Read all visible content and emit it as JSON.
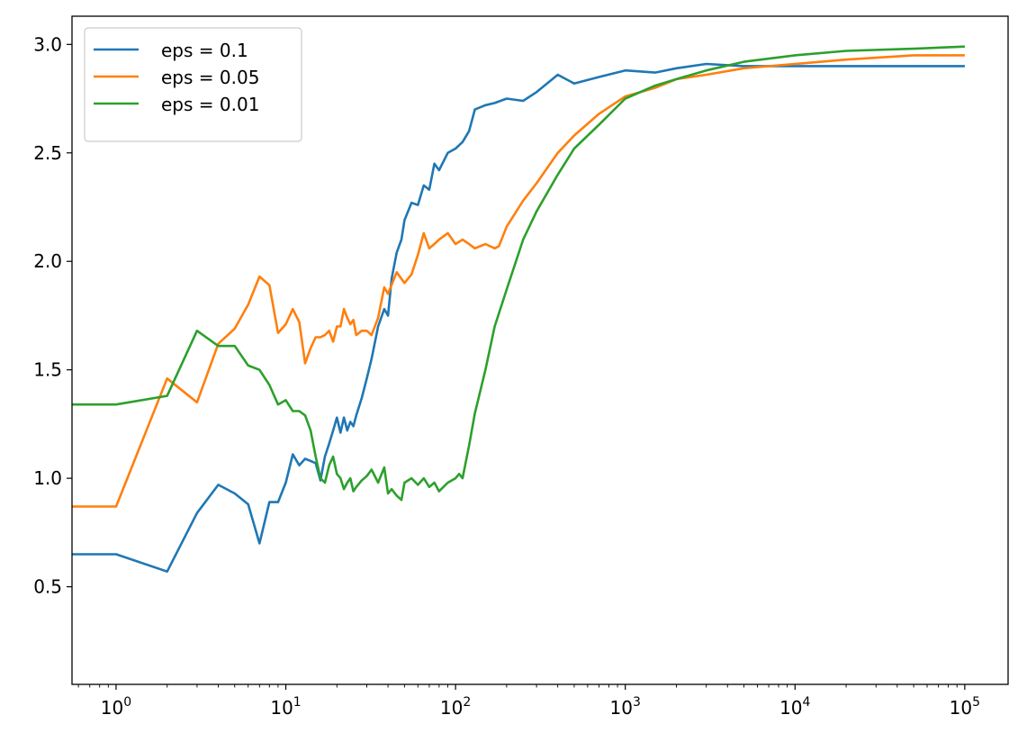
{
  "chart_data": {
    "type": "line",
    "title": "",
    "xlabel": "",
    "ylabel": "",
    "xscale": "log",
    "xlim": [
      0.55,
      180000
    ],
    "ylim": [
      0.05,
      3.13
    ],
    "grid": false,
    "legend_position": "top-left",
    "x_ticks": [
      {
        "value": 1,
        "base": "10",
        "exp": "0"
      },
      {
        "value": 10,
        "base": "10",
        "exp": "1"
      },
      {
        "value": 100,
        "base": "10",
        "exp": "2"
      },
      {
        "value": 1000,
        "base": "10",
        "exp": "3"
      },
      {
        "value": 10000,
        "base": "10",
        "exp": "4"
      },
      {
        "value": 100000,
        "base": "10",
        "exp": "5"
      }
    ],
    "y_ticks": [
      {
        "value": 0.5,
        "label": "0.5"
      },
      {
        "value": 1.0,
        "label": "1.0"
      },
      {
        "value": 1.5,
        "label": "1.5"
      },
      {
        "value": 2.0,
        "label": "2.0"
      },
      {
        "value": 2.5,
        "label": "2.5"
      },
      {
        "value": 3.0,
        "label": "3.0"
      }
    ],
    "series": [
      {
        "name": "eps = 0.1",
        "color": "#1f77b4",
        "x": [
          0.5,
          1,
          2,
          3,
          4,
          5,
          6,
          7,
          8,
          9,
          10,
          11,
          12,
          13,
          14,
          15,
          16,
          17,
          18,
          19,
          20,
          21,
          22,
          23,
          24,
          25,
          26,
          28,
          30,
          32,
          35,
          38,
          40,
          42,
          45,
          48,
          50,
          55,
          60,
          65,
          70,
          75,
          80,
          90,
          100,
          110,
          120,
          130,
          150,
          170,
          200,
          250,
          300,
          400,
          500,
          700,
          1000,
          1500,
          2000,
          3000,
          5000,
          10000,
          20000,
          50000,
          100000
        ],
        "y": [
          0.65,
          0.65,
          0.57,
          0.84,
          0.97,
          0.93,
          0.88,
          0.7,
          0.89,
          0.89,
          0.98,
          1.11,
          1.06,
          1.09,
          1.08,
          1.07,
          0.99,
          1.1,
          1.16,
          1.22,
          1.28,
          1.21,
          1.28,
          1.22,
          1.26,
          1.24,
          1.29,
          1.37,
          1.46,
          1.55,
          1.7,
          1.78,
          1.75,
          1.92,
          2.04,
          2.1,
          2.19,
          2.27,
          2.26,
          2.35,
          2.33,
          2.45,
          2.42,
          2.5,
          2.52,
          2.55,
          2.6,
          2.7,
          2.72,
          2.73,
          2.75,
          2.74,
          2.78,
          2.86,
          2.82,
          2.85,
          2.88,
          2.87,
          2.89,
          2.91,
          2.9,
          2.9,
          2.9,
          2.9,
          2.9
        ]
      },
      {
        "name": "eps = 0.05",
        "color": "#ff7f0e",
        "x": [
          0.5,
          1,
          2,
          3,
          4,
          5,
          6,
          7,
          8,
          9,
          10,
          11,
          12,
          13,
          14,
          15,
          16,
          17,
          18,
          19,
          20,
          21,
          22,
          23,
          24,
          25,
          26,
          28,
          30,
          32,
          35,
          38,
          40,
          45,
          50,
          55,
          60,
          65,
          70,
          75,
          80,
          90,
          100,
          110,
          120,
          130,
          150,
          170,
          180,
          200,
          250,
          300,
          400,
          500,
          700,
          1000,
          1500,
          2000,
          3000,
          5000,
          10000,
          20000,
          50000,
          100000
        ],
        "y": [
          0.87,
          0.87,
          1.46,
          1.35,
          1.62,
          1.69,
          1.8,
          1.93,
          1.89,
          1.67,
          1.71,
          1.78,
          1.72,
          1.53,
          1.6,
          1.65,
          1.65,
          1.66,
          1.68,
          1.63,
          1.7,
          1.7,
          1.78,
          1.74,
          1.71,
          1.73,
          1.66,
          1.68,
          1.68,
          1.66,
          1.74,
          1.88,
          1.85,
          1.95,
          1.9,
          1.94,
          2.03,
          2.13,
          2.06,
          2.08,
          2.1,
          2.13,
          2.08,
          2.1,
          2.08,
          2.06,
          2.08,
          2.06,
          2.07,
          2.16,
          2.28,
          2.36,
          2.5,
          2.58,
          2.68,
          2.76,
          2.8,
          2.84,
          2.86,
          2.89,
          2.91,
          2.93,
          2.95,
          2.95
        ]
      },
      {
        "name": "eps = 0.01",
        "color": "#2ca02c",
        "x": [
          0.5,
          1,
          2,
          3,
          4,
          5,
          6,
          7,
          8,
          9,
          10,
          11,
          12,
          13,
          14,
          15,
          16,
          17,
          18,
          19,
          20,
          21,
          22,
          23,
          24,
          25,
          26,
          28,
          30,
          32,
          35,
          38,
          40,
          42,
          45,
          48,
          50,
          55,
          60,
          65,
          70,
          75,
          80,
          90,
          100,
          105,
          110,
          120,
          130,
          150,
          170,
          200,
          250,
          300,
          400,
          500,
          700,
          1000,
          1500,
          2000,
          3000,
          5000,
          10000,
          20000,
          50000,
          100000
        ],
        "y": [
          1.34,
          1.34,
          1.38,
          1.68,
          1.61,
          1.61,
          1.52,
          1.5,
          1.43,
          1.34,
          1.36,
          1.31,
          1.31,
          1.29,
          1.22,
          1.1,
          1.0,
          0.98,
          1.06,
          1.1,
          1.02,
          1.0,
          0.95,
          0.98,
          1.0,
          0.94,
          0.96,
          0.99,
          1.01,
          1.04,
          0.98,
          1.05,
          0.93,
          0.95,
          0.92,
          0.9,
          0.98,
          1.0,
          0.97,
          1.0,
          0.96,
          0.98,
          0.94,
          0.98,
          1.0,
          1.02,
          1.0,
          1.15,
          1.3,
          1.5,
          1.7,
          1.87,
          2.1,
          2.23,
          2.4,
          2.52,
          2.63,
          2.75,
          2.81,
          2.84,
          2.88,
          2.92,
          2.95,
          2.97,
          2.98,
          2.99
        ]
      }
    ]
  }
}
